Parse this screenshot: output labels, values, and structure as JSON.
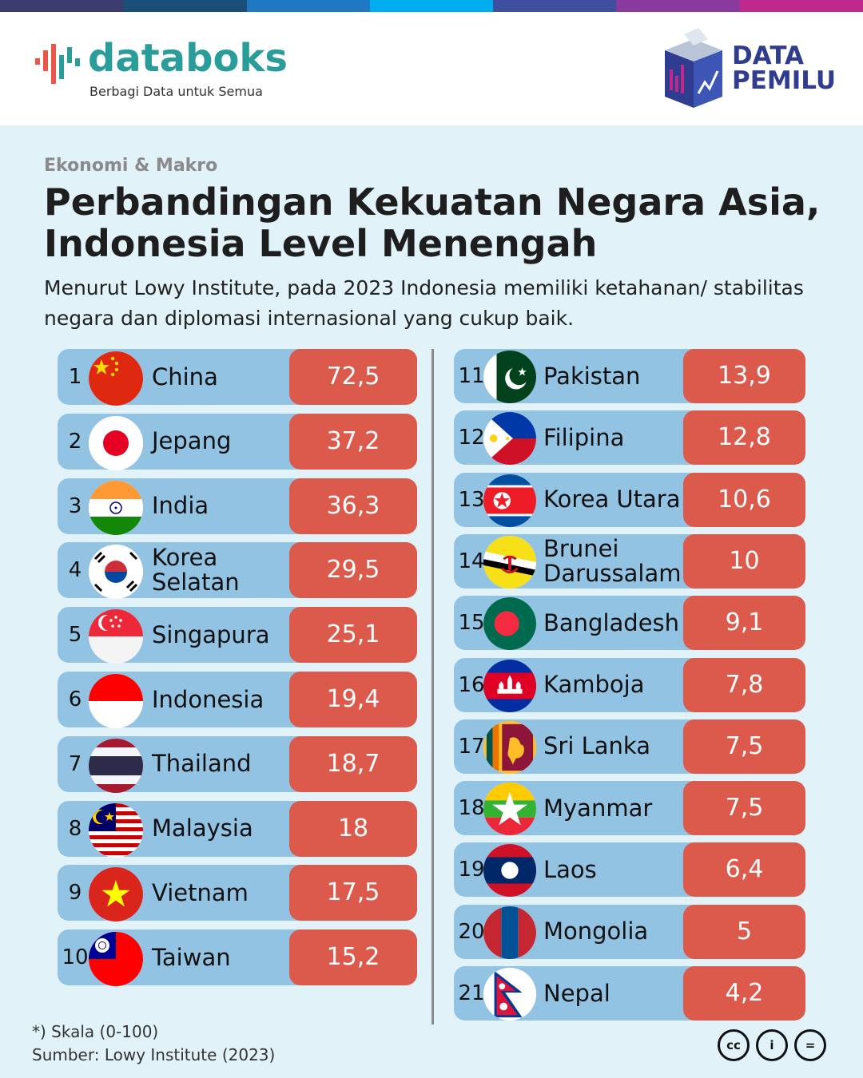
{
  "brand": {
    "name": "databoks",
    "tagline": "Berbagi Data untuk Semua",
    "partner_line1": "DATA",
    "partner_line2": "PEMILU"
  },
  "colors": {
    "topbar": [
      "#3c3c6e",
      "#1c4f77",
      "#1f78c1",
      "#00aeef",
      "#3f4fa0",
      "#8a3a9c",
      "#c0288c"
    ],
    "row_bg": "#92c3e3",
    "value_bg": "#dc5a4b",
    "brand_teal": "#2a9d9a",
    "pemilu_navy": "#2f3c8f"
  },
  "category": "Ekonomi & Makro",
  "title": "Perbandingan Kekuatan Negara Asia, Indonesia Level Menengah",
  "subtitle": "Menurut Lowy Institute, pada 2023 Indonesia memiliki ketahanan/ stabilitas negara dan diplomasi internasional yang cukup baik.",
  "chart_data": {
    "type": "table",
    "columns": [
      "rank",
      "country",
      "score"
    ],
    "rows": [
      {
        "rank": "1",
        "country": "China",
        "score": "72,5",
        "flag": "china-flag-icon"
      },
      {
        "rank": "2",
        "country": "Jepang",
        "score": "37,2",
        "flag": "japan-flag-icon"
      },
      {
        "rank": "3",
        "country": "India",
        "score": "36,3",
        "flag": "india-flag-icon"
      },
      {
        "rank": "4",
        "country": "Korea Selatan",
        "score": "29,5",
        "flag": "south-korea-flag-icon"
      },
      {
        "rank": "5",
        "country": "Singapura",
        "score": "25,1",
        "flag": "singapore-flag-icon"
      },
      {
        "rank": "6",
        "country": "Indonesia",
        "score": "19,4",
        "flag": "indonesia-flag-icon"
      },
      {
        "rank": "7",
        "country": "Thailand",
        "score": "18,7",
        "flag": "thailand-flag-icon"
      },
      {
        "rank": "8",
        "country": "Malaysia",
        "score": "18",
        "flag": "malaysia-flag-icon"
      },
      {
        "rank": "9",
        "country": "Vietnam",
        "score": "17,5",
        "flag": "vietnam-flag-icon"
      },
      {
        "rank": "10",
        "country": "Taiwan",
        "score": "15,2",
        "flag": "taiwan-flag-icon"
      },
      {
        "rank": "11",
        "country": "Pakistan",
        "score": "13,9",
        "flag": "pakistan-flag-icon"
      },
      {
        "rank": "12",
        "country": "Filipina",
        "score": "12,8",
        "flag": "philippines-flag-icon"
      },
      {
        "rank": "13",
        "country": "Korea Utara",
        "score": "10,6",
        "flag": "north-korea-flag-icon"
      },
      {
        "rank": "14",
        "country": "Brunei Darussalam",
        "score": "10",
        "flag": "brunei-flag-icon"
      },
      {
        "rank": "15",
        "country": "Bangladesh",
        "score": "9,1",
        "flag": "bangladesh-flag-icon"
      },
      {
        "rank": "16",
        "country": "Kamboja",
        "score": "7,8",
        "flag": "cambodia-flag-icon"
      },
      {
        "rank": "17",
        "country": "Sri Lanka",
        "score": "7,5",
        "flag": "sri-lanka-flag-icon"
      },
      {
        "rank": "18",
        "country": "Myanmar",
        "score": "7,5",
        "flag": "myanmar-flag-icon"
      },
      {
        "rank": "19",
        "country": "Laos",
        "score": "6,4",
        "flag": "laos-flag-icon"
      },
      {
        "rank": "20",
        "country": "Mongolia",
        "score": "5",
        "flag": "mongolia-flag-icon"
      },
      {
        "rank": "21",
        "country": "Nepal",
        "score": "4,2",
        "flag": "nepal-flag-icon"
      }
    ]
  },
  "footnote": {
    "scale": "*) Skala (0-100)",
    "source": "Sumber: Lowy Institute (2023)"
  },
  "license": {
    "cc": "cc",
    "by": "i",
    "nd": "="
  }
}
